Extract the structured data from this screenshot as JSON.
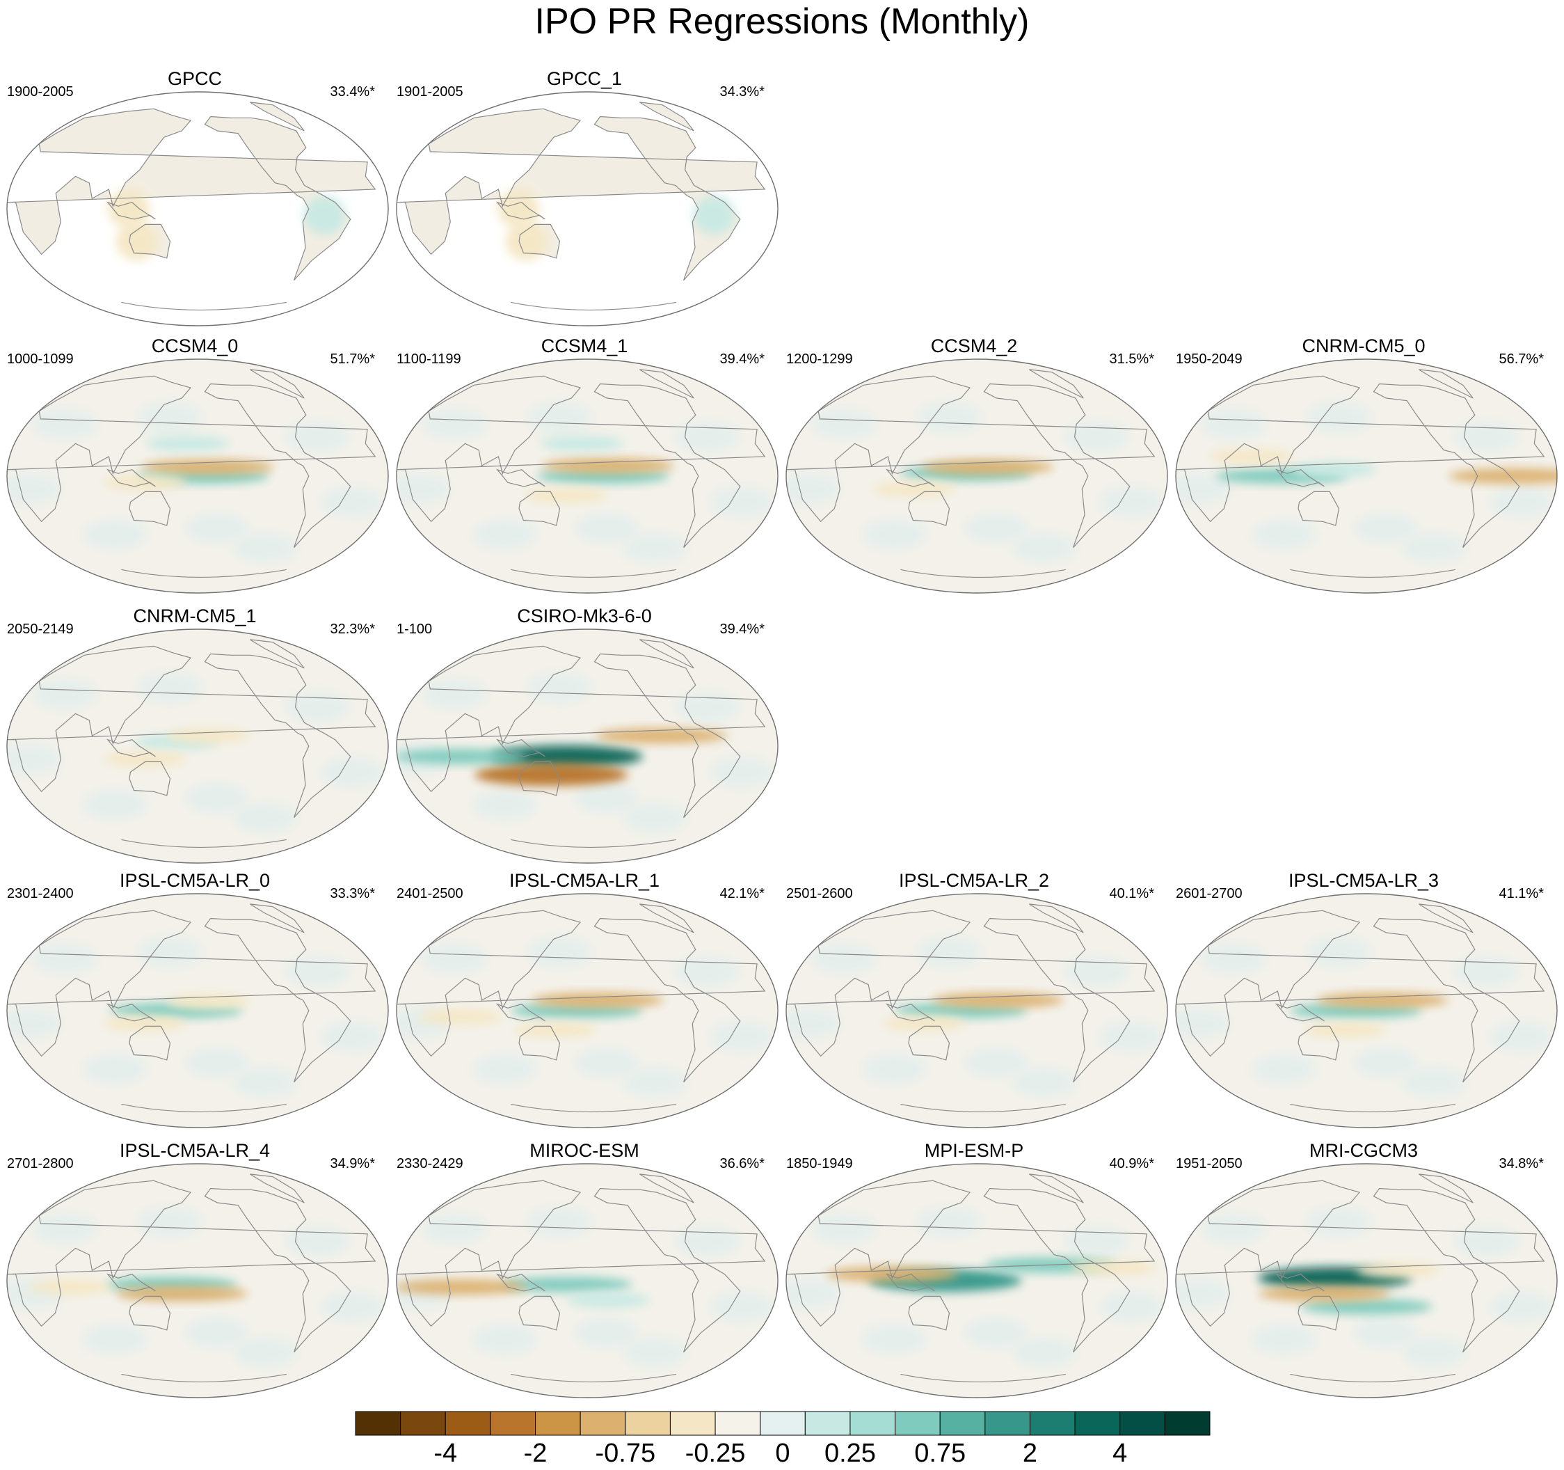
{
  "chart_data": {
    "type": "heatmap",
    "title": "IPO PR Regressions (Monthly)",
    "projection": "global map, Pacific-centered",
    "panels": [
      {
        "name": "GPCC",
        "period": "1900-2005",
        "pct": "33.4%*",
        "data": "land-only",
        "features": [
          {
            "lon": 300,
            "lat": -5,
            "value": 0.25
          },
          {
            "lon": 120,
            "lat": -25,
            "value": -0.25
          },
          {
            "lon": 115,
            "lat": 0,
            "value": -0.25
          }
        ]
      },
      {
        "name": "GPCC_1",
        "period": "1901-2005",
        "pct": "34.3%*",
        "data": "land-only",
        "features": [
          {
            "lon": 300,
            "lat": -5,
            "value": 0.25
          },
          {
            "lon": 120,
            "lat": -25,
            "value": -0.25
          },
          {
            "lon": 115,
            "lat": 0,
            "value": -0.25
          }
        ]
      },
      {
        "name": "CCSM4_0",
        "period": "1000-1099",
        "pct": "51.7%*",
        "data": "global",
        "features": [
          {
            "lon": 185,
            "lat": 0,
            "value": 0.75
          },
          {
            "lon": 190,
            "lat": 7,
            "value": -0.75
          },
          {
            "lon": 130,
            "lat": -5,
            "value": -0.25
          },
          {
            "lon": 170,
            "lat": 25,
            "value": 0.25
          }
        ]
      },
      {
        "name": "CCSM4_1",
        "period": "1100-1199",
        "pct": "39.4%*",
        "data": "global",
        "features": [
          {
            "lon": 195,
            "lat": 0,
            "value": 0.75
          },
          {
            "lon": 200,
            "lat": 8,
            "value": -0.75
          },
          {
            "lon": 160,
            "lat": -15,
            "value": -0.25
          },
          {
            "lon": 175,
            "lat": 25,
            "value": 0.25
          }
        ]
      },
      {
        "name": "CCSM4_2",
        "period": "1200-1299",
        "pct": "31.5%*",
        "data": "global",
        "features": [
          {
            "lon": 170,
            "lat": 2,
            "value": 0.75
          },
          {
            "lon": 190,
            "lat": 7,
            "value": -0.75
          },
          {
            "lon": 120,
            "lat": -10,
            "value": -0.25
          }
        ]
      },
      {
        "name": "CNRM-CM5_0",
        "period": "1950-2049",
        "pct": "56.7%*",
        "data": "global",
        "features": [
          {
            "lon": 100,
            "lat": 0,
            "value": 0.75
          },
          {
            "lon": 320,
            "lat": 0,
            "value": -0.75
          },
          {
            "lon": 150,
            "lat": 5,
            "value": 0.25
          },
          {
            "lon": 70,
            "lat": 15,
            "value": -0.25
          }
        ]
      },
      {
        "name": "CNRM-CM5_1",
        "period": "2050-2149",
        "pct": "32.3%*",
        "data": "global",
        "features": [
          {
            "lon": 160,
            "lat": 3,
            "value": 0.25
          },
          {
            "lon": 190,
            "lat": 8,
            "value": -0.25
          },
          {
            "lon": 130,
            "lat": -10,
            "value": -0.25
          }
        ]
      },
      {
        "name": "CSIRO-Mk3-6-0",
        "period": "1-100",
        "pct": "39.4%*",
        "data": "global",
        "features": [
          {
            "lon": 160,
            "lat": -8,
            "value": 4
          },
          {
            "lon": 145,
            "lat": -22,
            "value": -2
          },
          {
            "lon": 60,
            "lat": -8,
            "value": 0.75
          },
          {
            "lon": 250,
            "lat": 8,
            "value": -0.75
          }
        ]
      },
      {
        "name": "IPSL-CM5A-LR_0",
        "period": "2301-2400",
        "pct": "33.3%*",
        "data": "global",
        "features": [
          {
            "lon": 160,
            "lat": 0,
            "value": 0.75
          },
          {
            "lon": 190,
            "lat": 7,
            "value": -0.25
          },
          {
            "lon": 130,
            "lat": -10,
            "value": -0.25
          }
        ]
      },
      {
        "name": "IPSL-CM5A-LR_1",
        "period": "2401-2500",
        "pct": "42.1%*",
        "data": "global",
        "features": [
          {
            "lon": 170,
            "lat": 0,
            "value": 0.75
          },
          {
            "lon": 190,
            "lat": 8,
            "value": -0.75
          },
          {
            "lon": 60,
            "lat": -5,
            "value": -0.25
          },
          {
            "lon": 150,
            "lat": -15,
            "value": -0.25
          }
        ]
      },
      {
        "name": "IPSL-CM5A-LR_2",
        "period": "2501-2600",
        "pct": "40.1%*",
        "data": "global",
        "features": [
          {
            "lon": 165,
            "lat": 0,
            "value": 0.75
          },
          {
            "lon": 200,
            "lat": 8,
            "value": -0.75
          },
          {
            "lon": 130,
            "lat": -10,
            "value": -0.25
          }
        ]
      },
      {
        "name": "IPSL-CM5A-LR_3",
        "period": "2601-2700",
        "pct": "41.1%*",
        "data": "global",
        "features": [
          {
            "lon": 170,
            "lat": 0,
            "value": 0.75
          },
          {
            "lon": 195,
            "lat": 8,
            "value": -0.75
          },
          {
            "lon": 160,
            "lat": -15,
            "value": -0.25
          }
        ]
      },
      {
        "name": "IPSL-CM5A-LR_4",
        "period": "2701-2800",
        "pct": "34.9%*",
        "data": "global",
        "features": [
          {
            "lon": 155,
            "lat": -3,
            "value": 0.75
          },
          {
            "lon": 165,
            "lat": -10,
            "value": -0.75
          },
          {
            "lon": 60,
            "lat": -5,
            "value": -0.25
          }
        ]
      },
      {
        "name": "MIROC-ESM",
        "period": "2330-2429",
        "pct": "36.6%*",
        "data": "global",
        "features": [
          {
            "lon": 160,
            "lat": -3,
            "value": 0.75
          },
          {
            "lon": 60,
            "lat": -5,
            "value": -0.75
          },
          {
            "lon": 200,
            "lat": -15,
            "value": 0.25
          }
        ]
      },
      {
        "name": "MPI-ESM-P",
        "period": "1850-1949",
        "pct": "40.9%*",
        "data": "global",
        "features": [
          {
            "lon": 150,
            "lat": 0,
            "value": 2
          },
          {
            "lon": 100,
            "lat": 5,
            "value": -0.75
          },
          {
            "lon": 250,
            "lat": 12,
            "value": 0.75
          },
          {
            "lon": 310,
            "lat": 10,
            "value": -0.25
          }
        ]
      },
      {
        "name": "MRI-CGCM3",
        "period": "1951-2050",
        "pct": "34.8%*",
        "data": "global",
        "features": [
          {
            "lon": 150,
            "lat": 2,
            "value": 4
          },
          {
            "lon": 180,
            "lat": -20,
            "value": 0.75
          },
          {
            "lon": 140,
            "lat": -10,
            "value": -0.75
          },
          {
            "lon": 210,
            "lat": 8,
            "value": -0.25
          }
        ]
      }
    ],
    "colorbar": {
      "colors": [
        "#543005",
        "#7a470f",
        "#9c5c16",
        "#b8752b",
        "#cc9445",
        "#dcb170",
        "#ecd29e",
        "#f5e7c5",
        "#f5f2ea",
        "#e5f1f0",
        "#c8e9e3",
        "#a5dcd3",
        "#7fcbbd",
        "#57b1a2",
        "#36978a",
        "#1c7d71",
        "#0a6659",
        "#034f45",
        "#003c30"
      ],
      "tick_labels": [
        "-4",
        "-2",
        "-0.75",
        "-0.25",
        "0",
        "0.25",
        "0.75",
        "2",
        "4"
      ]
    }
  }
}
